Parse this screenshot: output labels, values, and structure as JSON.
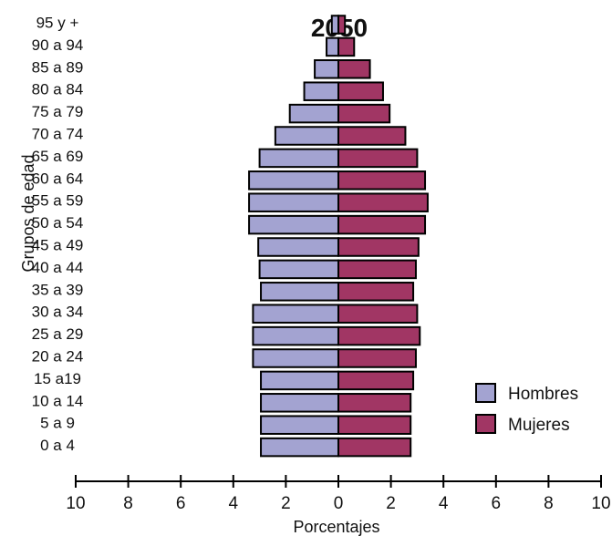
{
  "chart_data": {
    "type": "bar",
    "orientation": "horizontal",
    "layout": "population-pyramid",
    "title": "2050",
    "xlabel": "Porcentajes",
    "ylabel": "Grupos de edad",
    "xlim": [
      -10,
      10
    ],
    "x_ticks": [
      "10",
      "8",
      "6",
      "4",
      "2",
      "0",
      "2",
      "4",
      "6",
      "8",
      "10"
    ],
    "grid": false,
    "legend_position": "bottom-right",
    "categories": [
      "95 y +",
      "90 a 94",
      "85 a 89",
      "80 a 84",
      "75 a 79",
      "70 a 74",
      "65 a 69",
      "60 a 64",
      "55 a 59",
      "50 a 54",
      "45 a 49",
      "40 a 44",
      "35 a 39",
      "30 a 34",
      "25 a 29",
      "20 a 24",
      "15 a19",
      "10 a 14",
      "5 a 9",
      "0 a 4"
    ],
    "series": [
      {
        "name": "Hombres",
        "color": "#a3a3d1",
        "side": "left",
        "values": [
          0.25,
          0.45,
          0.9,
          1.3,
          1.85,
          2.4,
          3.0,
          3.4,
          3.4,
          3.4,
          3.05,
          3.0,
          2.95,
          3.25,
          3.25,
          3.25,
          2.95,
          2.95,
          2.95,
          2.95
        ]
      },
      {
        "name": "Mujeres",
        "color": "#a13664",
        "side": "right",
        "values": [
          0.25,
          0.6,
          1.2,
          1.7,
          1.95,
          2.55,
          3.0,
          3.3,
          3.4,
          3.3,
          3.05,
          2.95,
          2.85,
          3.0,
          3.1,
          2.95,
          2.85,
          2.75,
          2.75,
          2.75
        ]
      }
    ]
  }
}
